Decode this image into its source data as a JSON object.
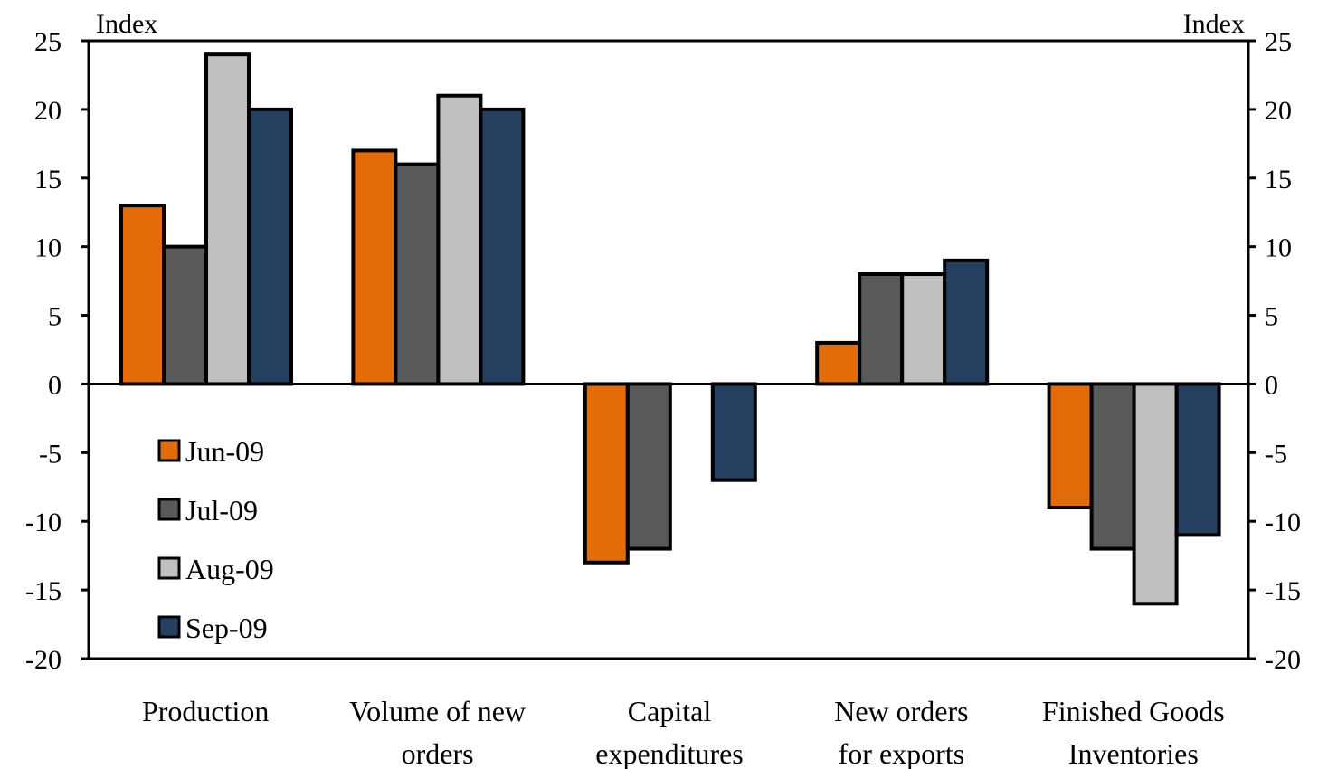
{
  "chart_data": {
    "type": "bar",
    "y_unit_left": "Index",
    "y_unit_right": "Index",
    "ylim": [
      -20,
      25
    ],
    "yticks": [
      "25",
      "20",
      "15",
      "10",
      "5",
      "0",
      "-5",
      "-10",
      "-15",
      "-20"
    ],
    "ytick_values": [
      25,
      20,
      15,
      10,
      5,
      0,
      -5,
      -10,
      -15,
      -20
    ],
    "categories": [
      [
        "Production"
      ],
      [
        "Volume of new",
        "orders"
      ],
      [
        "Capital",
        "expenditures"
      ],
      [
        "New orders",
        "for exports"
      ],
      [
        "Finished Goods",
        "Inventories"
      ]
    ],
    "series": [
      {
        "name": "Jun-09",
        "color": "#E36C0A",
        "values": [
          13,
          17,
          -13,
          3,
          -9
        ]
      },
      {
        "name": "Jul-09",
        "color": "#595959",
        "values": [
          10,
          16,
          -12,
          8,
          -12
        ]
      },
      {
        "name": "Aug-09",
        "color": "#BFBFBF",
        "values": [
          24,
          21,
          null,
          8,
          -16
        ]
      },
      {
        "name": "Sep-09",
        "color": "#243F60",
        "values": [
          20,
          20,
          -7,
          9,
          -11
        ]
      }
    ],
    "legend_position": "inside-left-lower",
    "grid": false
  }
}
